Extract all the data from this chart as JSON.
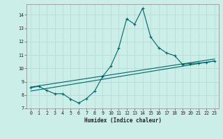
{
  "title": "",
  "xlabel": "Humidex (Indice chaleur)",
  "bg_color": "#cceee8",
  "grid_color": "#b0d8d0",
  "line_color": "#006666",
  "xlim": [
    -0.5,
    23.5
  ],
  "ylim": [
    7.0,
    14.8
  ],
  "xticks": [
    0,
    1,
    2,
    3,
    4,
    5,
    6,
    7,
    8,
    9,
    10,
    11,
    12,
    13,
    14,
    15,
    16,
    17,
    18,
    19,
    20,
    21,
    22,
    23
  ],
  "yticks": [
    7,
    8,
    9,
    10,
    11,
    12,
    13,
    14
  ],
  "line1_x": [
    0,
    1,
    2,
    3,
    4,
    5,
    6,
    7,
    8,
    9,
    10,
    11,
    12,
    13,
    14,
    15,
    16,
    17,
    18,
    19,
    20,
    21,
    22,
    23
  ],
  "line1_y": [
    8.55,
    8.65,
    8.35,
    8.1,
    8.1,
    7.7,
    7.4,
    7.75,
    8.3,
    9.4,
    10.15,
    11.5,
    13.7,
    13.3,
    14.5,
    12.35,
    11.55,
    11.15,
    10.95,
    10.3,
    10.35,
    10.4,
    10.45,
    10.55
  ],
  "line2_x": [
    0,
    23
  ],
  "line2_y": [
    8.6,
    10.7
  ],
  "line3_x": [
    0,
    23
  ],
  "line3_y": [
    8.3,
    10.55
  ]
}
